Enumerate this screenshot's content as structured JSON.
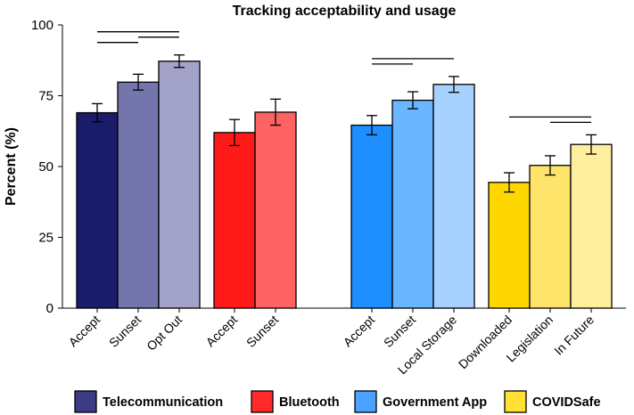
{
  "chart_data": {
    "type": "bar",
    "title": "Tracking acceptability and usage",
    "xlabel": "",
    "ylabel": "Percent (%)",
    "ylim": [
      0,
      100
    ],
    "yticks": [
      "0",
      "25",
      "50",
      "75",
      "100"
    ],
    "grid": false,
    "legend_position": "bottom",
    "groups": [
      {
        "name": "Telecommunication",
        "color": "#1b1b6b",
        "bars": [
          {
            "label": "Accept",
            "value": 69,
            "err": 3.2,
            "color": "#1b1b6b"
          },
          {
            "label": "Sunset",
            "value": 79.8,
            "err": 2.8,
            "color": "#7575ad"
          },
          {
            "label": "Opt Out",
            "value": 87.2,
            "err": 2.2,
            "color": "#a3a3c9"
          }
        ],
        "brackets": [
          [
            0,
            1
          ],
          [
            0,
            2
          ],
          [
            1,
            2
          ]
        ]
      },
      {
        "name": "Bluetooth",
        "color": "#ff1a1a",
        "bars": [
          {
            "label": "Accept",
            "value": 62,
            "err": 4.6,
            "color": "#ff1a1a"
          },
          {
            "label": "Sunset",
            "value": 69.2,
            "err": 4.6,
            "color": "#ff6262"
          }
        ],
        "brackets": []
      },
      {
        "name": "Government App",
        "color": "#1e8fff",
        "bars": [
          {
            "label": "Accept",
            "value": 64.6,
            "err": 3.4,
            "color": "#1e8fff"
          },
          {
            "label": "Sunset",
            "value": 73.4,
            "err": 3.0,
            "color": "#6cb5ff"
          },
          {
            "label": "Local Storage",
            "value": 79,
            "err": 2.8,
            "color": "#a7d1ff"
          }
        ],
        "brackets": [
          [
            0,
            1
          ],
          [
            0,
            2
          ]
        ]
      },
      {
        "name": "COVIDSafe",
        "color": "#ffd700",
        "bars": [
          {
            "label": "Downloaded",
            "value": 44.4,
            "err": 3.4,
            "color": "#ffd700"
          },
          {
            "label": "Legislation",
            "value": 50.4,
            "err": 3.4,
            "color": "#ffe46b"
          },
          {
            "label": "In Future",
            "value": 57.8,
            "err": 3.4,
            "color": "#ffee9e"
          }
        ],
        "brackets": [
          [
            0,
            2
          ],
          [
            1,
            2
          ]
        ]
      }
    ],
    "legend": [
      {
        "label": "Telecommunication",
        "color": "#3c3c86"
      },
      {
        "label": "Bluetooth",
        "color": "#ff2a2a"
      },
      {
        "label": "Government App",
        "color": "#4ba3ff"
      },
      {
        "label": "COVIDSafe",
        "color": "#ffe033"
      }
    ]
  }
}
